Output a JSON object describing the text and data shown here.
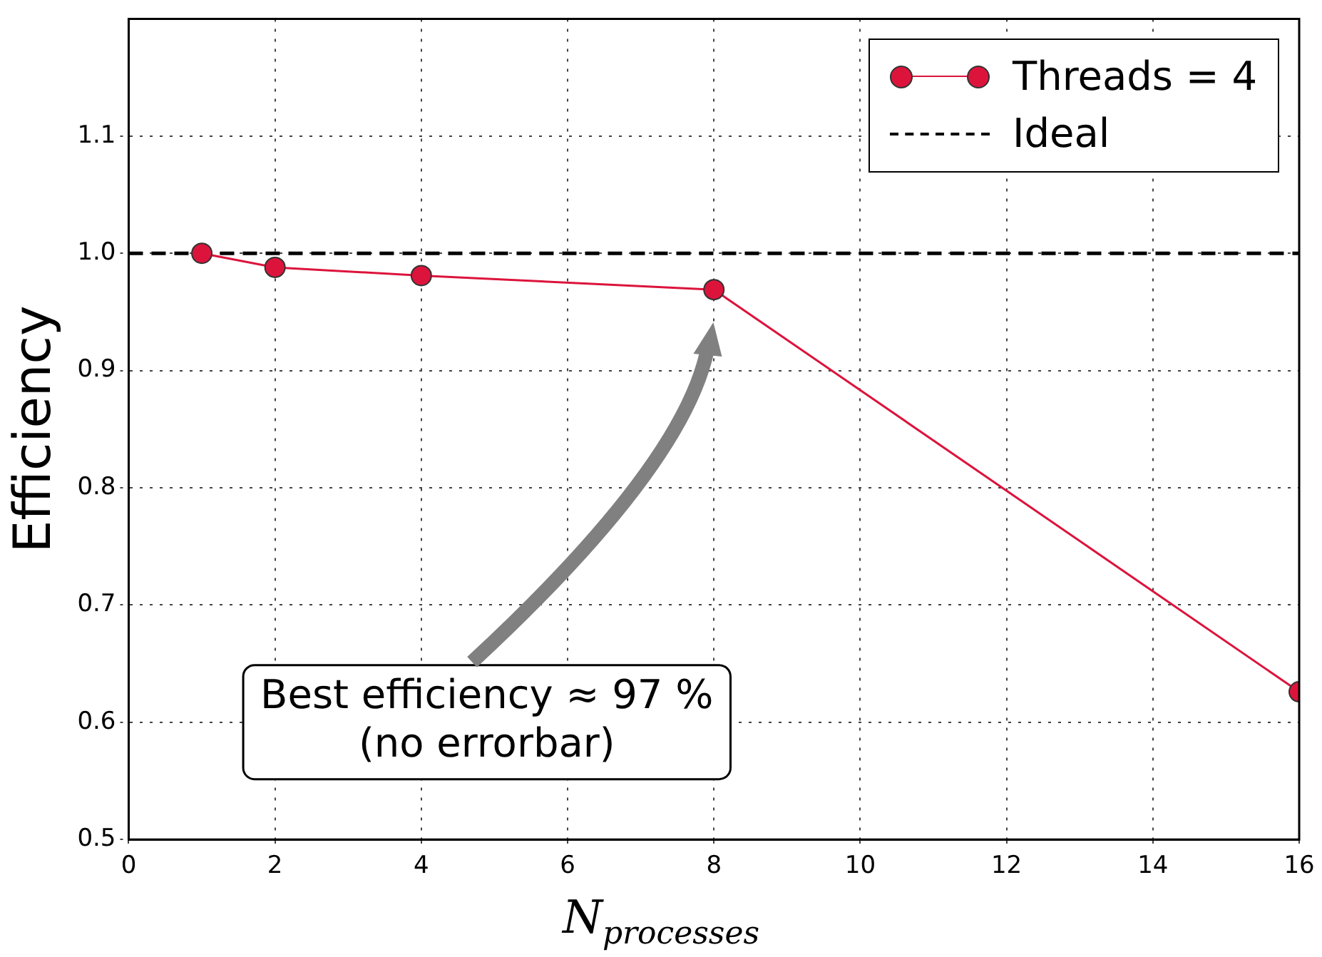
{
  "chart_data": {
    "type": "line",
    "xlabel": "N$_{processes}$",
    "ylabel": "Efficiency",
    "x": [
      1,
      2,
      4,
      8,
      16
    ],
    "series": [
      {
        "name": "Threads = 4",
        "color": "#dc143c",
        "values": [
          1.0,
          0.988,
          0.981,
          0.969,
          0.626
        ],
        "marker": "circle",
        "line_style": "solid"
      },
      {
        "name": "Ideal",
        "color": "#000000",
        "x": [
          0,
          16
        ],
        "values": [
          1.0,
          1.0
        ],
        "marker": "none",
        "line_style": "dashed"
      }
    ],
    "xlim": [
      0,
      16
    ],
    "xticks": [
      0,
      2,
      4,
      6,
      8,
      10,
      12,
      14,
      16
    ],
    "ylim": [
      0.5,
      1.2
    ],
    "yticks": [
      {
        "value": 0.5,
        "label": "0.5"
      },
      {
        "value": 0.6,
        "label": "0.6"
      },
      {
        "value": 0.7,
        "label": "0.7"
      },
      {
        "value": 0.8,
        "label": "0.8"
      },
      {
        "value": 0.9,
        "label": "0.9"
      },
      {
        "value": 1.0,
        "label": "1.0"
      },
      {
        "value": 1.1,
        "label": "1.1"
      }
    ],
    "grid": true,
    "legend": "top right",
    "annotations": [
      "Best efficiency ≈ 97 %\n(no errorbar)"
    ]
  }
}
